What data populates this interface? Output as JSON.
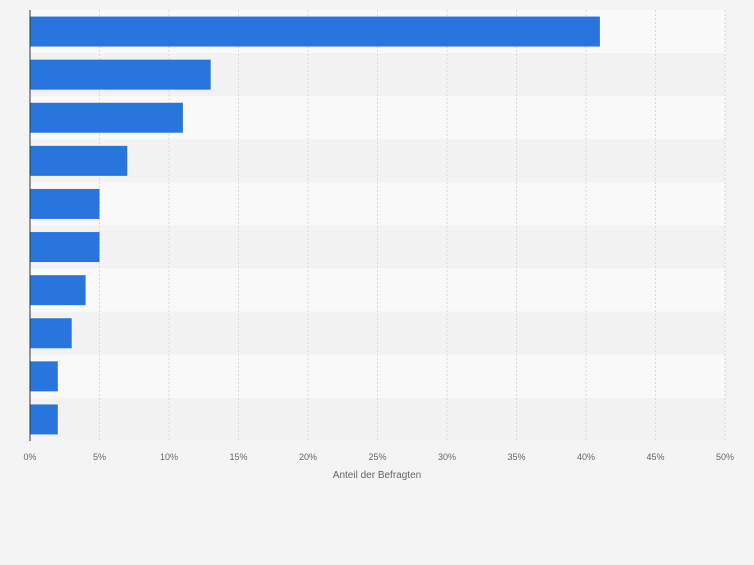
{
  "chart_data": {
    "type": "bar",
    "orientation": "horizontal",
    "categories": [
      "",
      "",
      "",
      "",
      "",
      "",
      "",
      "",
      "",
      ""
    ],
    "values": [
      41,
      13,
      11,
      7,
      5,
      5,
      4,
      3,
      2,
      2
    ],
    "xlabel": "Anteil der Befragten",
    "ylabel": "",
    "xlim": [
      0,
      50
    ],
    "ticks": [
      0,
      5,
      10,
      15,
      20,
      25,
      30,
      35,
      40,
      45,
      50
    ],
    "tick_labels": [
      "0%",
      "5%",
      "10%",
      "15%",
      "20%",
      "25%",
      "30%",
      "35%",
      "40%",
      "45%",
      "50%"
    ],
    "grid": true,
    "legend": "none",
    "colors": {
      "bar": "#2876dd",
      "band_light": "#f9f9f9",
      "band_dark": "#f2f2f2",
      "grid": "#d9d9d9",
      "axis": "#333333",
      "tick_text": "#666666",
      "page_background": "#f4f4f4"
    }
  }
}
